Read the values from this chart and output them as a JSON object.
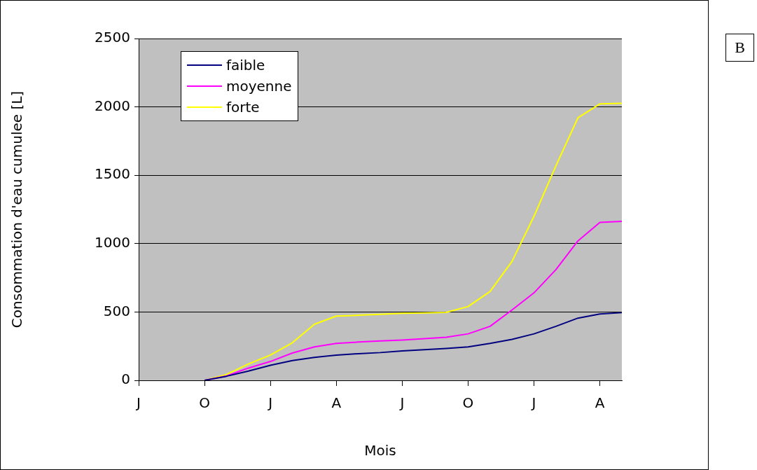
{
  "chart_data": {
    "type": "line",
    "xlabel": "Mois",
    "ylabel": "Consommation d'eau cumulee [L]",
    "annotations": [
      "B"
    ],
    "categories": [
      "J",
      null,
      null,
      "O",
      null,
      null,
      "J",
      null,
      null,
      "A",
      null,
      null,
      "J",
      null,
      null,
      "O",
      null,
      null,
      "J",
      null,
      null,
      "A",
      null
    ],
    "ylim": [
      0,
      2500
    ],
    "yticks": [
      0,
      500,
      1000,
      1500,
      2000,
      2500
    ],
    "grid": "y",
    "legend": "top left",
    "marker": "none",
    "line_style": "solid",
    "series": [
      {
        "name": "faible",
        "color": "#000080",
        "values": [
          null,
          null,
          null,
          0,
          30,
          68,
          110,
          145,
          168,
          185,
          195,
          203,
          215,
          224,
          233,
          245,
          270,
          300,
          340,
          395,
          455,
          485,
          495
        ]
      },
      {
        "name": "moyenne",
        "color": "#ff00ff",
        "values": [
          null,
          null,
          null,
          0,
          32,
          90,
          138,
          200,
          245,
          270,
          280,
          288,
          295,
          305,
          315,
          340,
          395,
          515,
          640,
          810,
          1020,
          1155,
          1163
        ]
      },
      {
        "name": "forte",
        "color": "#ffff00",
        "values": [
          null,
          null,
          null,
          0,
          43,
          120,
          185,
          275,
          410,
          470,
          476,
          483,
          490,
          493,
          497,
          540,
          650,
          870,
          1200,
          1570,
          1920,
          2022,
          2026
        ]
      }
    ]
  }
}
